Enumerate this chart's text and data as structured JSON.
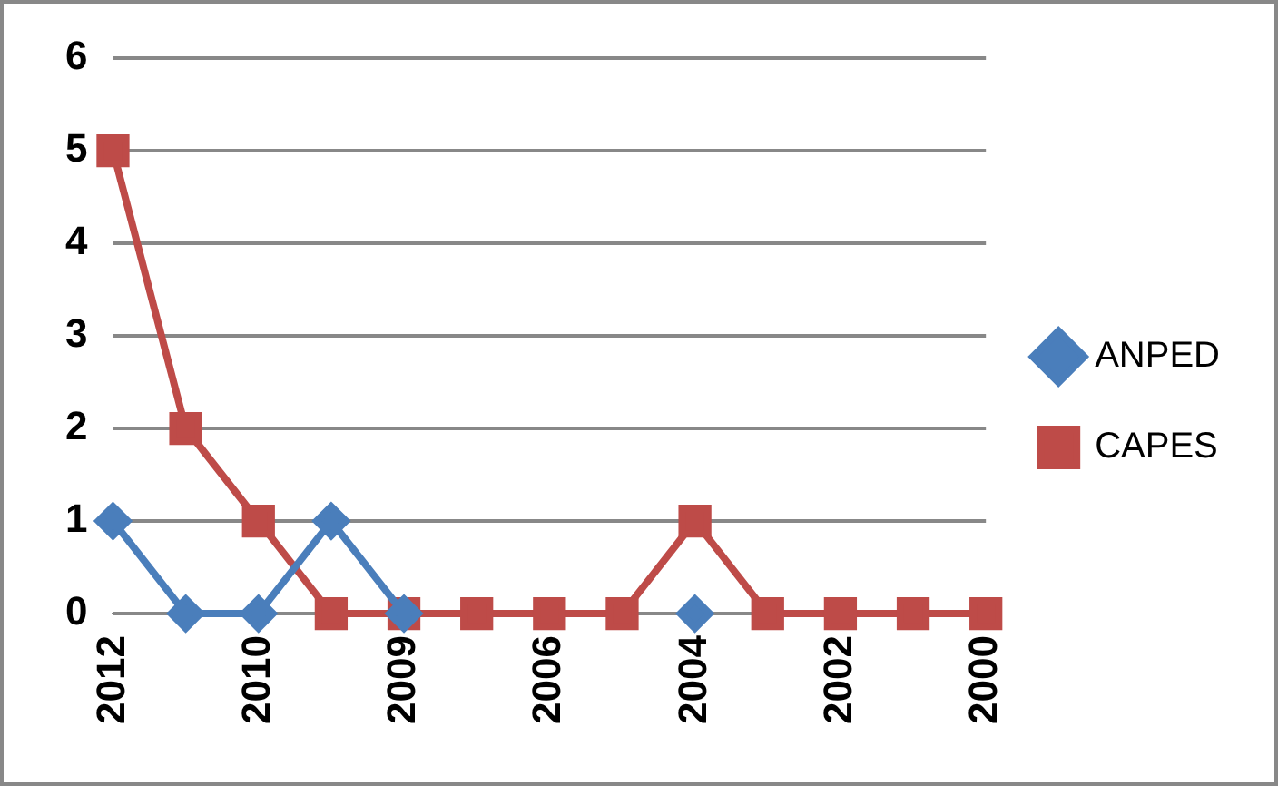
{
  "chart_data": {
    "type": "line",
    "categories": [
      "2012",
      null,
      "2010",
      null,
      "2009",
      null,
      "2006",
      null,
      "2004",
      null,
      "2002",
      null,
      "2000"
    ],
    "series": [
      {
        "name": "ANPED",
        "color": "#4a7ebb",
        "marker": "diamond",
        "values": [
          1,
          0,
          0,
          1,
          0,
          null,
          null,
          null,
          0,
          null,
          null,
          null,
          null
        ]
      },
      {
        "name": "CAPES",
        "color": "#be4b48",
        "marker": "square",
        "values": [
          5,
          2,
          1,
          0,
          0,
          0,
          0,
          0,
          1,
          0,
          0,
          0,
          0
        ]
      }
    ],
    "ylim": [
      0,
      6
    ],
    "yticks": [
      0,
      1,
      2,
      3,
      4,
      5,
      6
    ],
    "grid": "y",
    "legend": "right",
    "line_style": "solid"
  }
}
